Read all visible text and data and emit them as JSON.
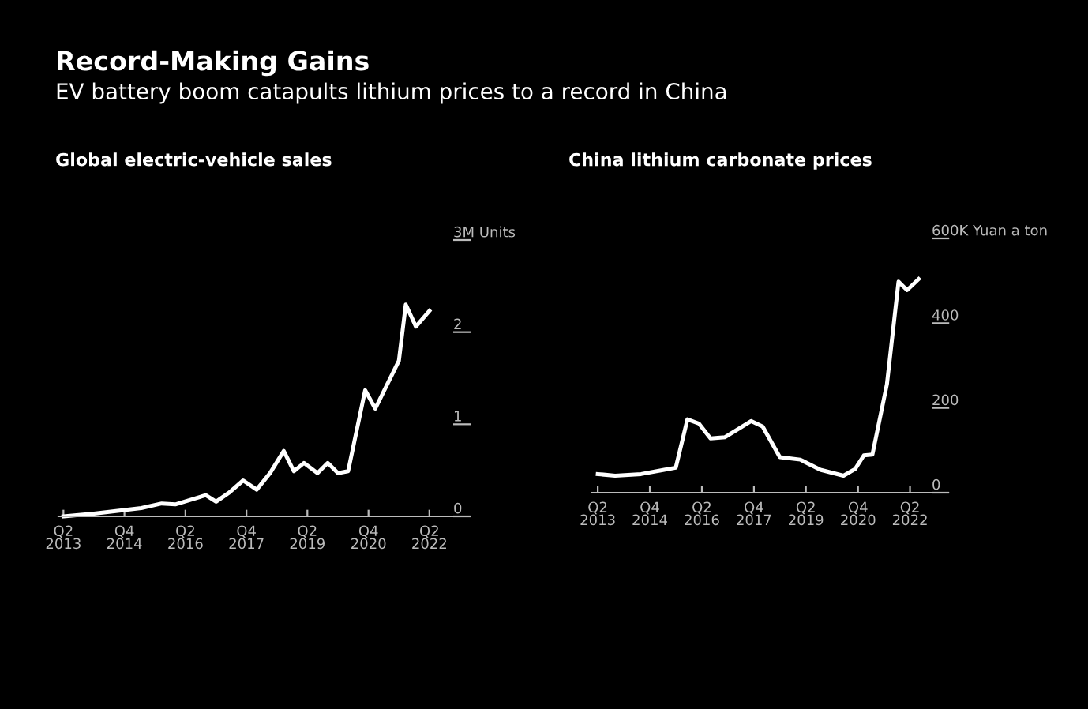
{
  "chart_data": [
    {
      "type": "other",
      "title": "Record-Making Gains",
      "subtitle": "EV battery boom catapults lithium prices to a record in China"
    },
    {
      "type": "line",
      "title": "Global electric-vehicle sales",
      "color": "#ffffff",
      "x": [
        "2013-04",
        "2014-01",
        "2015-03",
        "2015-09",
        "2016-01",
        "2016-10",
        "2017-01",
        "2017-05",
        "2017-09",
        "2018-01",
        "2018-05",
        "2018-09",
        "2018-12",
        "2019-03",
        "2019-07",
        "2019-10",
        "2020-01",
        "2020-04",
        "2020-09",
        "2020-12",
        "2021-07",
        "2021-09",
        "2021-12",
        "2022-04"
      ],
      "values": [
        0.0,
        0.03,
        0.09,
        0.14,
        0.13,
        0.23,
        0.16,
        0.26,
        0.39,
        0.29,
        0.47,
        0.71,
        0.49,
        0.58,
        0.47,
        0.58,
        0.47,
        0.49,
        1.37,
        1.17,
        1.69,
        2.3,
        2.06,
        2.23
      ],
      "xlim": [
        "2013-02-15",
        "2022-11-01"
      ],
      "ylim": [
        0,
        3
      ],
      "xticks": [
        {
          "value": "2013-04",
          "label": "Q2\n2013"
        },
        {
          "value": "2014-10",
          "label": "Q4\n2014"
        },
        {
          "value": "2016-04",
          "label": "Q2\n2016"
        },
        {
          "value": "2017-10",
          "label": "Q4\n2017"
        },
        {
          "value": "2019-04",
          "label": "Q2\n2019"
        },
        {
          "value": "2020-10",
          "label": "Q4\n2020"
        },
        {
          "value": "2022-04",
          "label": "Q2\n2022"
        }
      ],
      "yticks": [
        0,
        1,
        2,
        {
          "value": 3,
          "label": "3M Units"
        }
      ],
      "grid": false,
      "legend": false
    },
    {
      "type": "line",
      "title": "China lithium carbonate prices",
      "color": "#ffffff",
      "x": [
        "2013-04",
        "2013-10",
        "2014-07",
        "2015-03",
        "2015-07",
        "2015-11",
        "2016-03",
        "2016-07",
        "2016-12",
        "2017-09",
        "2018-01",
        "2018-07",
        "2019-02",
        "2019-09",
        "2020-05",
        "2020-09",
        "2020-12",
        "2021-03",
        "2021-08",
        "2021-12",
        "2022-01",
        "2022-03",
        "2022-07"
      ],
      "values": [
        44,
        40,
        44,
        54,
        59,
        173,
        163,
        128,
        131,
        169,
        156,
        84,
        78,
        54,
        40,
        56,
        88,
        90,
        256,
        498,
        491,
        478,
        504
      ],
      "xlim": [
        "2013-02-01",
        "2022-11-15"
      ],
      "ylim": [
        0,
        600
      ],
      "xticks": [
        {
          "value": "2013-04",
          "label": "Q2\n2013"
        },
        {
          "value": "2014-10",
          "label": "Q4\n2014"
        },
        {
          "value": "2016-04",
          "label": "Q2\n2016"
        },
        {
          "value": "2017-10",
          "label": "Q4\n2017"
        },
        {
          "value": "2019-04",
          "label": "Q2\n2019"
        },
        {
          "value": "2020-10",
          "label": "Q4\n2020"
        },
        {
          "value": "2022-04",
          "label": "Q2\n2022"
        }
      ],
      "yticks": [
        0,
        200,
        400,
        {
          "value": 600,
          "label": "600K Yuan a ton"
        }
      ],
      "grid": false,
      "legend": false
    }
  ]
}
